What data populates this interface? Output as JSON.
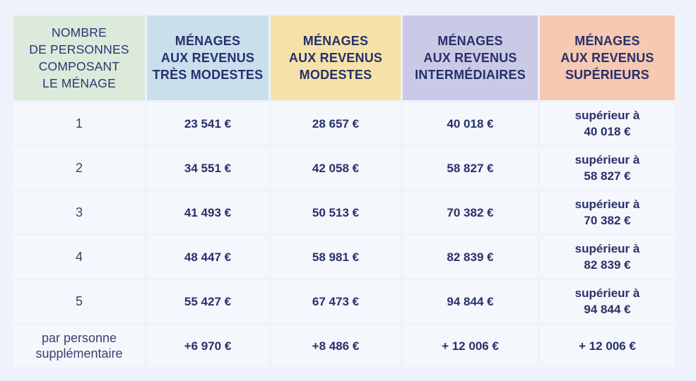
{
  "table": {
    "headers": [
      {
        "label": "NOMBRE DE PERSONNES COMPOSANT LE MÉNAGE",
        "lines": [
          "NOMBRE",
          "DE PERSONNES",
          "COMPOSANT",
          "LE MÉNAGE"
        ],
        "color": "#dbeadb"
      },
      {
        "label": "MÉNAGES AUX REVENUS TRÈS MODESTES",
        "lines": [
          "MÉNAGES",
          "AUX REVENUS",
          "TRÈS MODESTES"
        ],
        "color": "#cadfee"
      },
      {
        "label": "MÉNAGES AUX REVENUS MODESTES",
        "lines": [
          "MÉNAGES",
          "AUX REVENUS",
          "MODESTES"
        ],
        "color": "#f6e2a9"
      },
      {
        "label": "MÉNAGES AUX REVENUS INTERMÉDIAIRES",
        "lines": [
          "MÉNAGES",
          "AUX REVENUS",
          "INTERMÉDIAIRES"
        ],
        "color": "#cbcae6"
      },
      {
        "label": "MÉNAGES AUX REVENUS SUPÉRIEURS",
        "lines": [
          "MÉNAGES",
          "AUX REVENUS",
          "SUPÉRIEURS"
        ],
        "color": "#f7c8b2"
      }
    ],
    "rows": [
      {
        "persons": "1",
        "tres_modestes": "23 541 €",
        "modestes": "28 657 €",
        "intermediaires": "40 018 €",
        "superieurs_prefix": "supérieur à",
        "superieurs": "40 018 €"
      },
      {
        "persons": "2",
        "tres_modestes": "34 551 €",
        "modestes": "42 058 €",
        "intermediaires": "58 827 €",
        "superieurs_prefix": "supérieur à",
        "superieurs": "58 827 €"
      },
      {
        "persons": "3",
        "tres_modestes": "41 493 €",
        "modestes": "50 513 €",
        "intermediaires": "70 382 €",
        "superieurs_prefix": "supérieur à",
        "superieurs": "70 382 €"
      },
      {
        "persons": "4",
        "tres_modestes": "48 447 €",
        "modestes": "58 981 €",
        "intermediaires": "82 839 €",
        "superieurs_prefix": "supérieur à",
        "superieurs": "82 839 €"
      },
      {
        "persons": "5",
        "tres_modestes": "55 427 €",
        "modestes": "67 473 €",
        "intermediaires": "94 844 €",
        "superieurs_prefix": "supérieur à",
        "superieurs": "94 844 €"
      }
    ],
    "extra_row": {
      "label_lines": [
        "par personne",
        "supplémentaire"
      ],
      "tres_modestes": "+6 970 €",
      "modestes": "+8 486 €",
      "intermediaires": "+ 12 006 €",
      "superieurs": "+ 12 006 €"
    }
  }
}
